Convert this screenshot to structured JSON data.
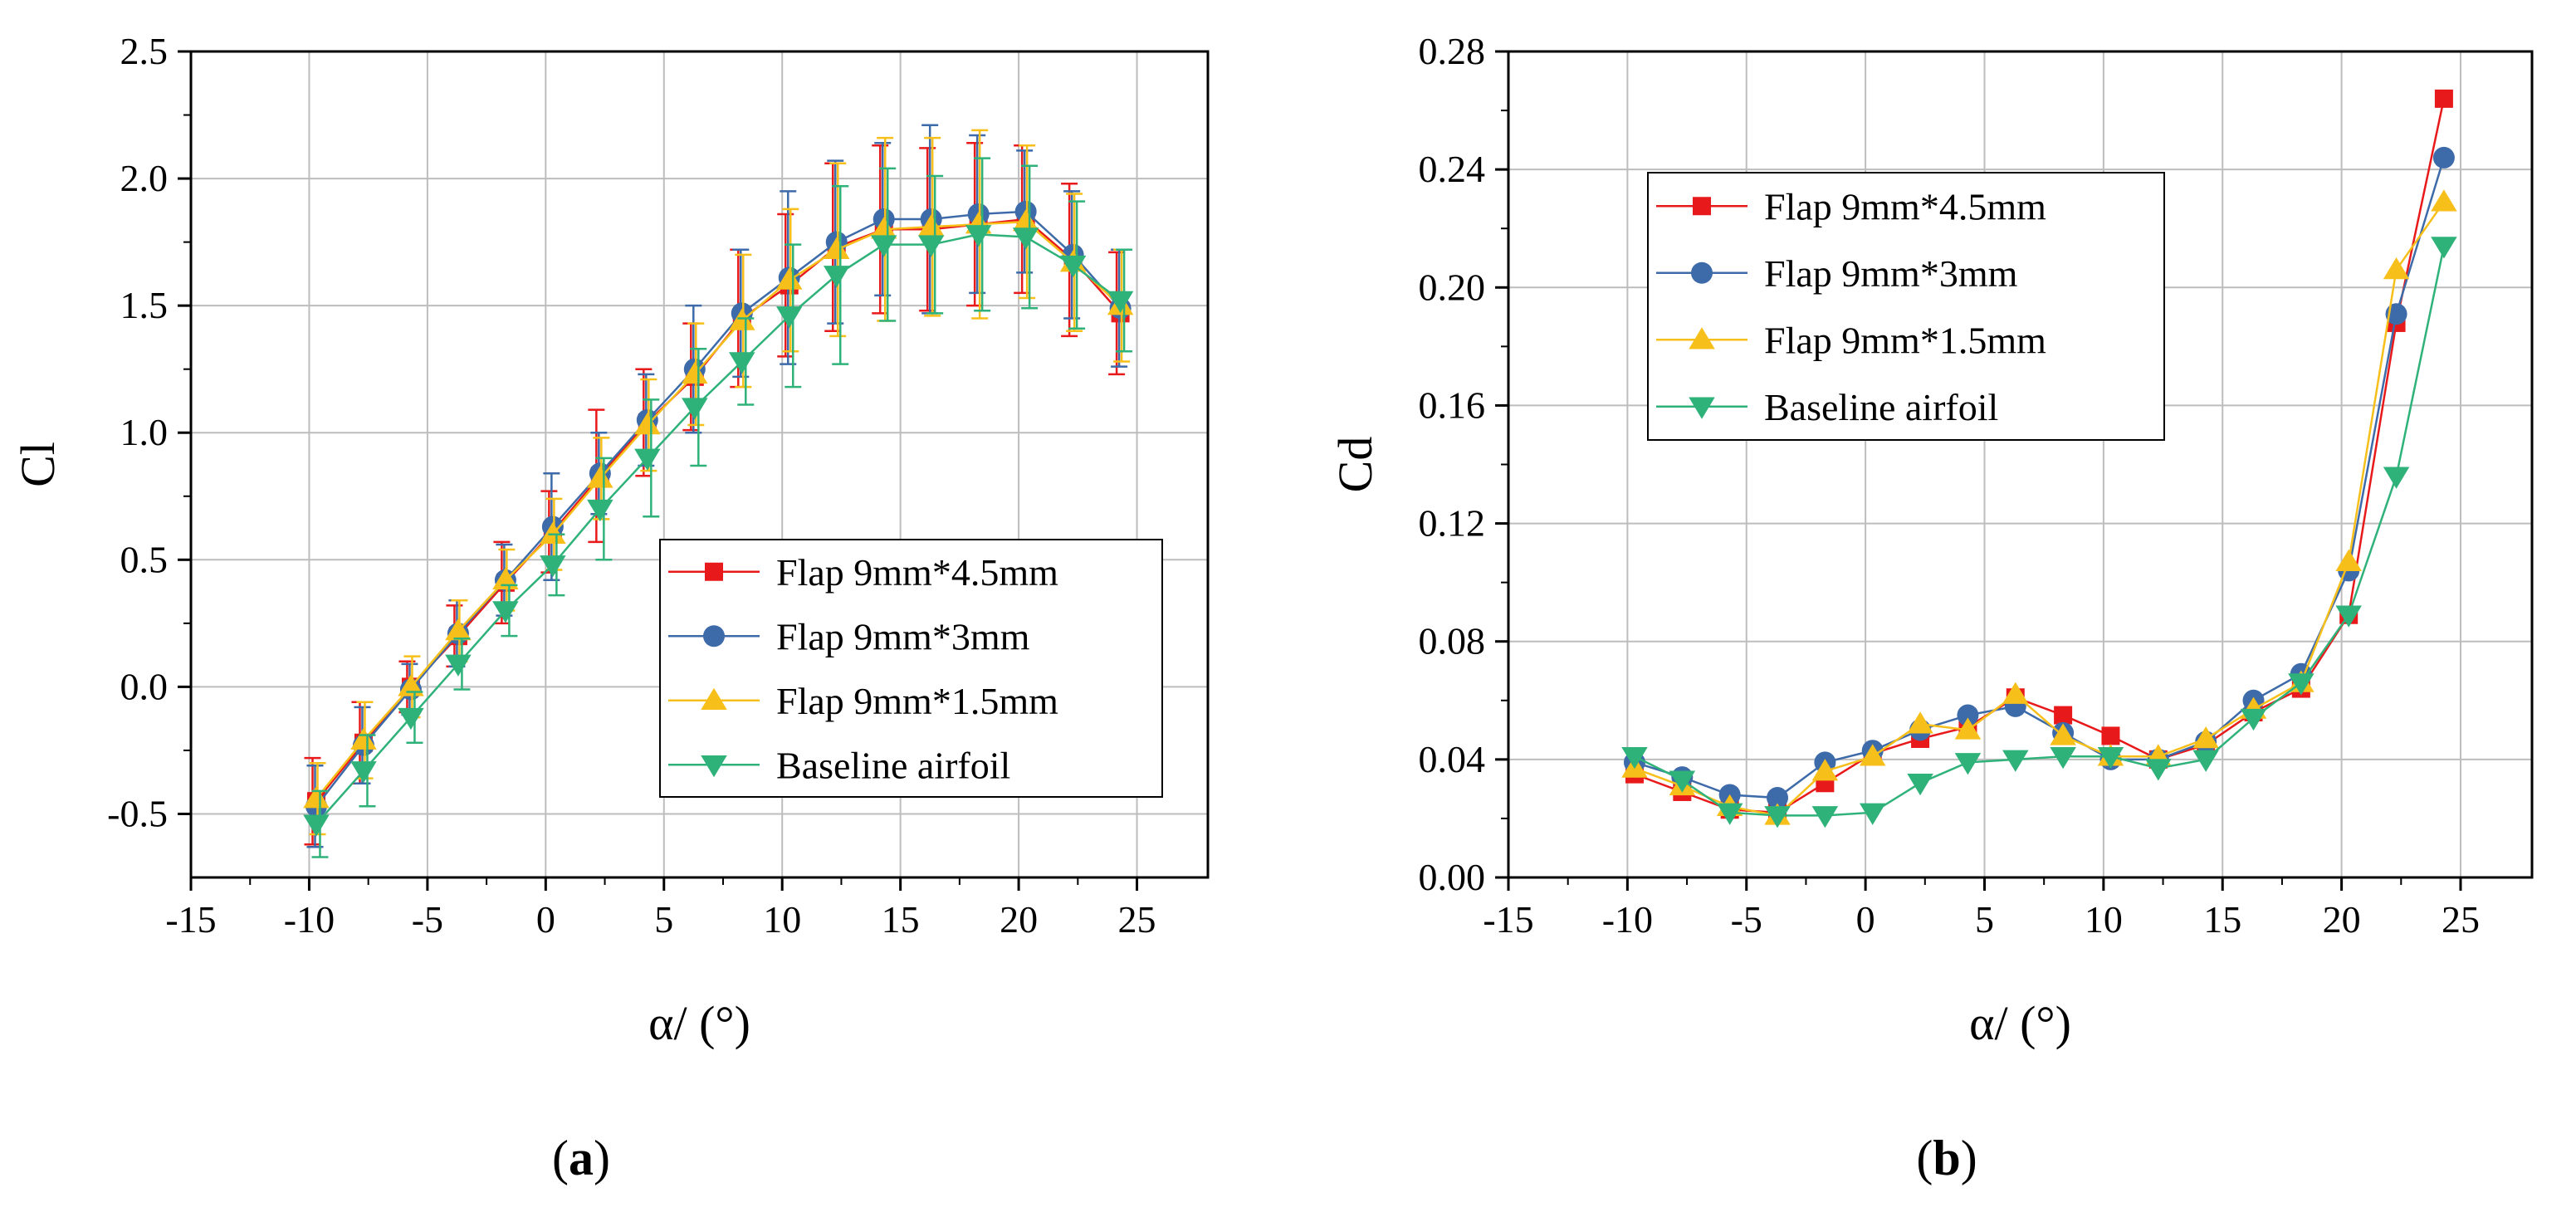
{
  "chart_data": [
    {
      "id": "a",
      "type": "line",
      "caption_letter": "a",
      "ylabel": "Cl",
      "xlabel": "α/ (°)",
      "xlim": [
        -15,
        28
      ],
      "ylim": [
        -0.75,
        2.5
      ],
      "xticks": [
        -15,
        -10,
        -5,
        0,
        5,
        10,
        15,
        20,
        25
      ],
      "xtick_labels": [
        "-15",
        "-10",
        "-5",
        "0",
        "5",
        "10",
        "15",
        "20",
        "25"
      ],
      "yticks": [
        -0.5,
        0.0,
        0.5,
        1.0,
        1.5,
        2.0,
        2.5
      ],
      "ytick_labels": [
        "-0.5",
        "0.0",
        "0.5",
        "1.0",
        "1.5",
        "2.0",
        "2.5"
      ],
      "grid": true,
      "legend_position": "lower-right",
      "error_bars": true,
      "x": [
        -9.7,
        -7.7,
        -5.7,
        -3.7,
        -1.7,
        0.3,
        2.3,
        4.3,
        6.3,
        8.3,
        10.3,
        12.3,
        14.3,
        16.3,
        18.3,
        20.3,
        22.3,
        24.3
      ],
      "series": [
        {
          "name": "Flap 9mm*4.5mm",
          "color": "#E8191A",
          "marker": "square",
          "values": [
            -0.45,
            -0.22,
            0.0,
            0.2,
            0.41,
            0.61,
            0.83,
            1.04,
            1.22,
            1.45,
            1.58,
            1.73,
            1.8,
            1.8,
            1.82,
            1.84,
            1.68,
            1.47
          ],
          "errors": [
            0.17,
            0.16,
            0.1,
            0.12,
            0.16,
            0.16,
            0.26,
            0.21,
            0.21,
            0.27,
            0.28,
            0.33,
            0.33,
            0.32,
            0.32,
            0.29,
            0.3,
            0.24
          ]
        },
        {
          "name": "Flap 9mm*3mm",
          "color": "#3D6AA8",
          "marker": "circle",
          "values": [
            -0.47,
            -0.23,
            -0.01,
            0.21,
            0.42,
            0.63,
            0.84,
            1.05,
            1.25,
            1.47,
            1.61,
            1.75,
            1.84,
            1.84,
            1.86,
            1.87,
            1.7,
            1.49
          ],
          "errors": [
            0.16,
            0.15,
            0.1,
            0.13,
            0.14,
            0.21,
            0.16,
            0.18,
            0.25,
            0.25,
            0.34,
            0.32,
            0.3,
            0.37,
            0.31,
            0.24,
            0.25,
            0.23
          ]
        },
        {
          "name": "Flap 9mm*1.5mm",
          "color": "#F7BF1A",
          "marker": "triangle-up",
          "values": [
            -0.44,
            -0.21,
            0.0,
            0.22,
            0.42,
            0.6,
            0.82,
            1.03,
            1.23,
            1.44,
            1.6,
            1.72,
            1.8,
            1.81,
            1.82,
            1.83,
            1.67,
            1.5
          ],
          "errors": [
            0.14,
            0.15,
            0.12,
            0.12,
            0.12,
            0.14,
            0.16,
            0.18,
            0.2,
            0.26,
            0.28,
            0.34,
            0.36,
            0.35,
            0.37,
            0.3,
            0.27,
            0.22
          ]
        },
        {
          "name": "Baseline airfoil",
          "color": "#2FB27A",
          "marker": "triangle-down",
          "values": [
            -0.54,
            -0.33,
            -0.12,
            0.09,
            0.3,
            0.48,
            0.7,
            0.9,
            1.1,
            1.28,
            1.46,
            1.62,
            1.74,
            1.74,
            1.78,
            1.77,
            1.66,
            1.52
          ],
          "errors": [
            0.13,
            0.14,
            0.1,
            0.1,
            0.1,
            0.12,
            0.2,
            0.23,
            0.23,
            0.17,
            0.28,
            0.35,
            0.3,
            0.27,
            0.3,
            0.28,
            0.25,
            0.2
          ]
        }
      ]
    },
    {
      "id": "b",
      "type": "line",
      "caption_letter": "b",
      "ylabel": "Cd",
      "xlabel": "α/ (°)",
      "xlim": [
        -15,
        28
      ],
      "ylim": [
        0.0,
        0.28
      ],
      "xticks": [
        -15,
        -10,
        -5,
        0,
        5,
        10,
        15,
        20,
        25
      ],
      "xtick_labels": [
        "-15",
        "-10",
        "-5",
        "0",
        "5",
        "10",
        "15",
        "20",
        "25"
      ],
      "yticks": [
        0.0,
        0.04,
        0.08,
        0.12,
        0.16,
        0.2,
        0.24,
        0.28
      ],
      "ytick_labels": [
        "0.00",
        "0.04",
        "0.08",
        "0.12",
        "0.16",
        "0.20",
        "0.24",
        "0.28"
      ],
      "grid": true,
      "legend_position": "upper-left",
      "error_bars": false,
      "x": [
        -9.7,
        -7.7,
        -5.7,
        -3.7,
        -1.7,
        0.3,
        2.3,
        4.3,
        6.3,
        8.3,
        10.3,
        12.3,
        14.3,
        16.3,
        18.3,
        20.3,
        22.3,
        24.3
      ],
      "series": [
        {
          "name": "Flap 9mm*4.5mm",
          "color": "#E8191A",
          "marker": "square",
          "values": [
            0.035,
            0.029,
            0.023,
            0.022,
            0.032,
            0.042,
            0.047,
            0.051,
            0.061,
            0.055,
            0.048,
            0.04,
            0.045,
            0.056,
            0.064,
            0.089,
            0.188,
            0.264
          ]
        },
        {
          "name": "Flap 9mm*3mm",
          "color": "#3D6AA8",
          "marker": "circle",
          "values": [
            0.039,
            0.034,
            0.028,
            0.027,
            0.039,
            0.043,
            0.05,
            0.055,
            0.058,
            0.049,
            0.04,
            0.04,
            0.046,
            0.06,
            0.069,
            0.104,
            0.191,
            0.244
          ]
        },
        {
          "name": "Flap 9mm*1.5mm",
          "color": "#F7BF1A",
          "marker": "triangle-up",
          "values": [
            0.037,
            0.031,
            0.024,
            0.021,
            0.036,
            0.041,
            0.052,
            0.05,
            0.062,
            0.048,
            0.041,
            0.041,
            0.047,
            0.057,
            0.066,
            0.107,
            0.206,
            0.229
          ]
        },
        {
          "name": "Baseline airfoil",
          "color": "#2FB27A",
          "marker": "triangle-down",
          "values": [
            0.041,
            0.033,
            0.022,
            0.021,
            0.021,
            0.022,
            0.032,
            0.039,
            0.04,
            0.041,
            0.041,
            0.037,
            0.04,
            0.054,
            0.066,
            0.089,
            0.136,
            0.214
          ]
        }
      ]
    }
  ]
}
